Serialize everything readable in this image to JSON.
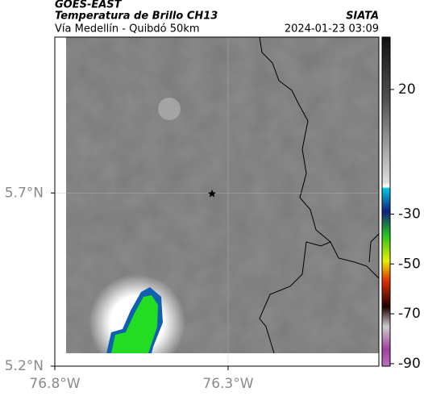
{
  "header": {
    "title": "GOES-EAST",
    "subtitle": "Temperatura de Brillo CH13",
    "route": "Vía Medellín - Quibdó 50km",
    "source": "SIATA",
    "timestamp": "2024-01-23 03:09"
  },
  "map": {
    "xlim": [
      -76.8,
      -75.865
    ],
    "ylim": [
      5.2,
      6.15
    ],
    "xticks": [
      {
        "value": -76.8,
        "label": "76.8°W"
      },
      {
        "value": -76.3,
        "label": "76.3°W"
      }
    ],
    "yticks": [
      {
        "value": 5.7,
        "label": "5.7°N"
      },
      {
        "value": 5.2,
        "label": "5.2°N"
      }
    ],
    "colorbar": {
      "lim": [
        41,
        -91
      ],
      "ticks": [
        20,
        -30,
        -50,
        -70,
        -90
      ]
    }
  }
}
